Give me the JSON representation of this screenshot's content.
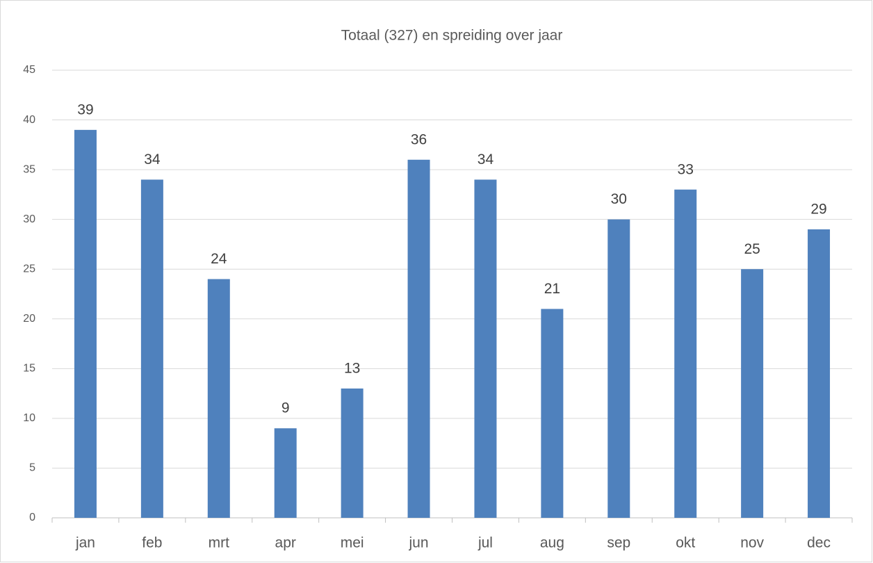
{
  "chart_data": {
    "type": "bar",
    "title": "Totaal (327) en spreiding over jaar",
    "categories": [
      "jan",
      "feb",
      "mrt",
      "apr",
      "mei",
      "jun",
      "jul",
      "aug",
      "sep",
      "okt",
      "nov",
      "dec"
    ],
    "values": [
      39,
      34,
      24,
      9,
      13,
      36,
      34,
      21,
      30,
      33,
      25,
      29
    ],
    "color": "#4f81bd",
    "ylim": [
      0,
      45
    ],
    "yticks": [
      0,
      5,
      10,
      15,
      20,
      25,
      30,
      35,
      40,
      45
    ],
    "grid": true
  }
}
